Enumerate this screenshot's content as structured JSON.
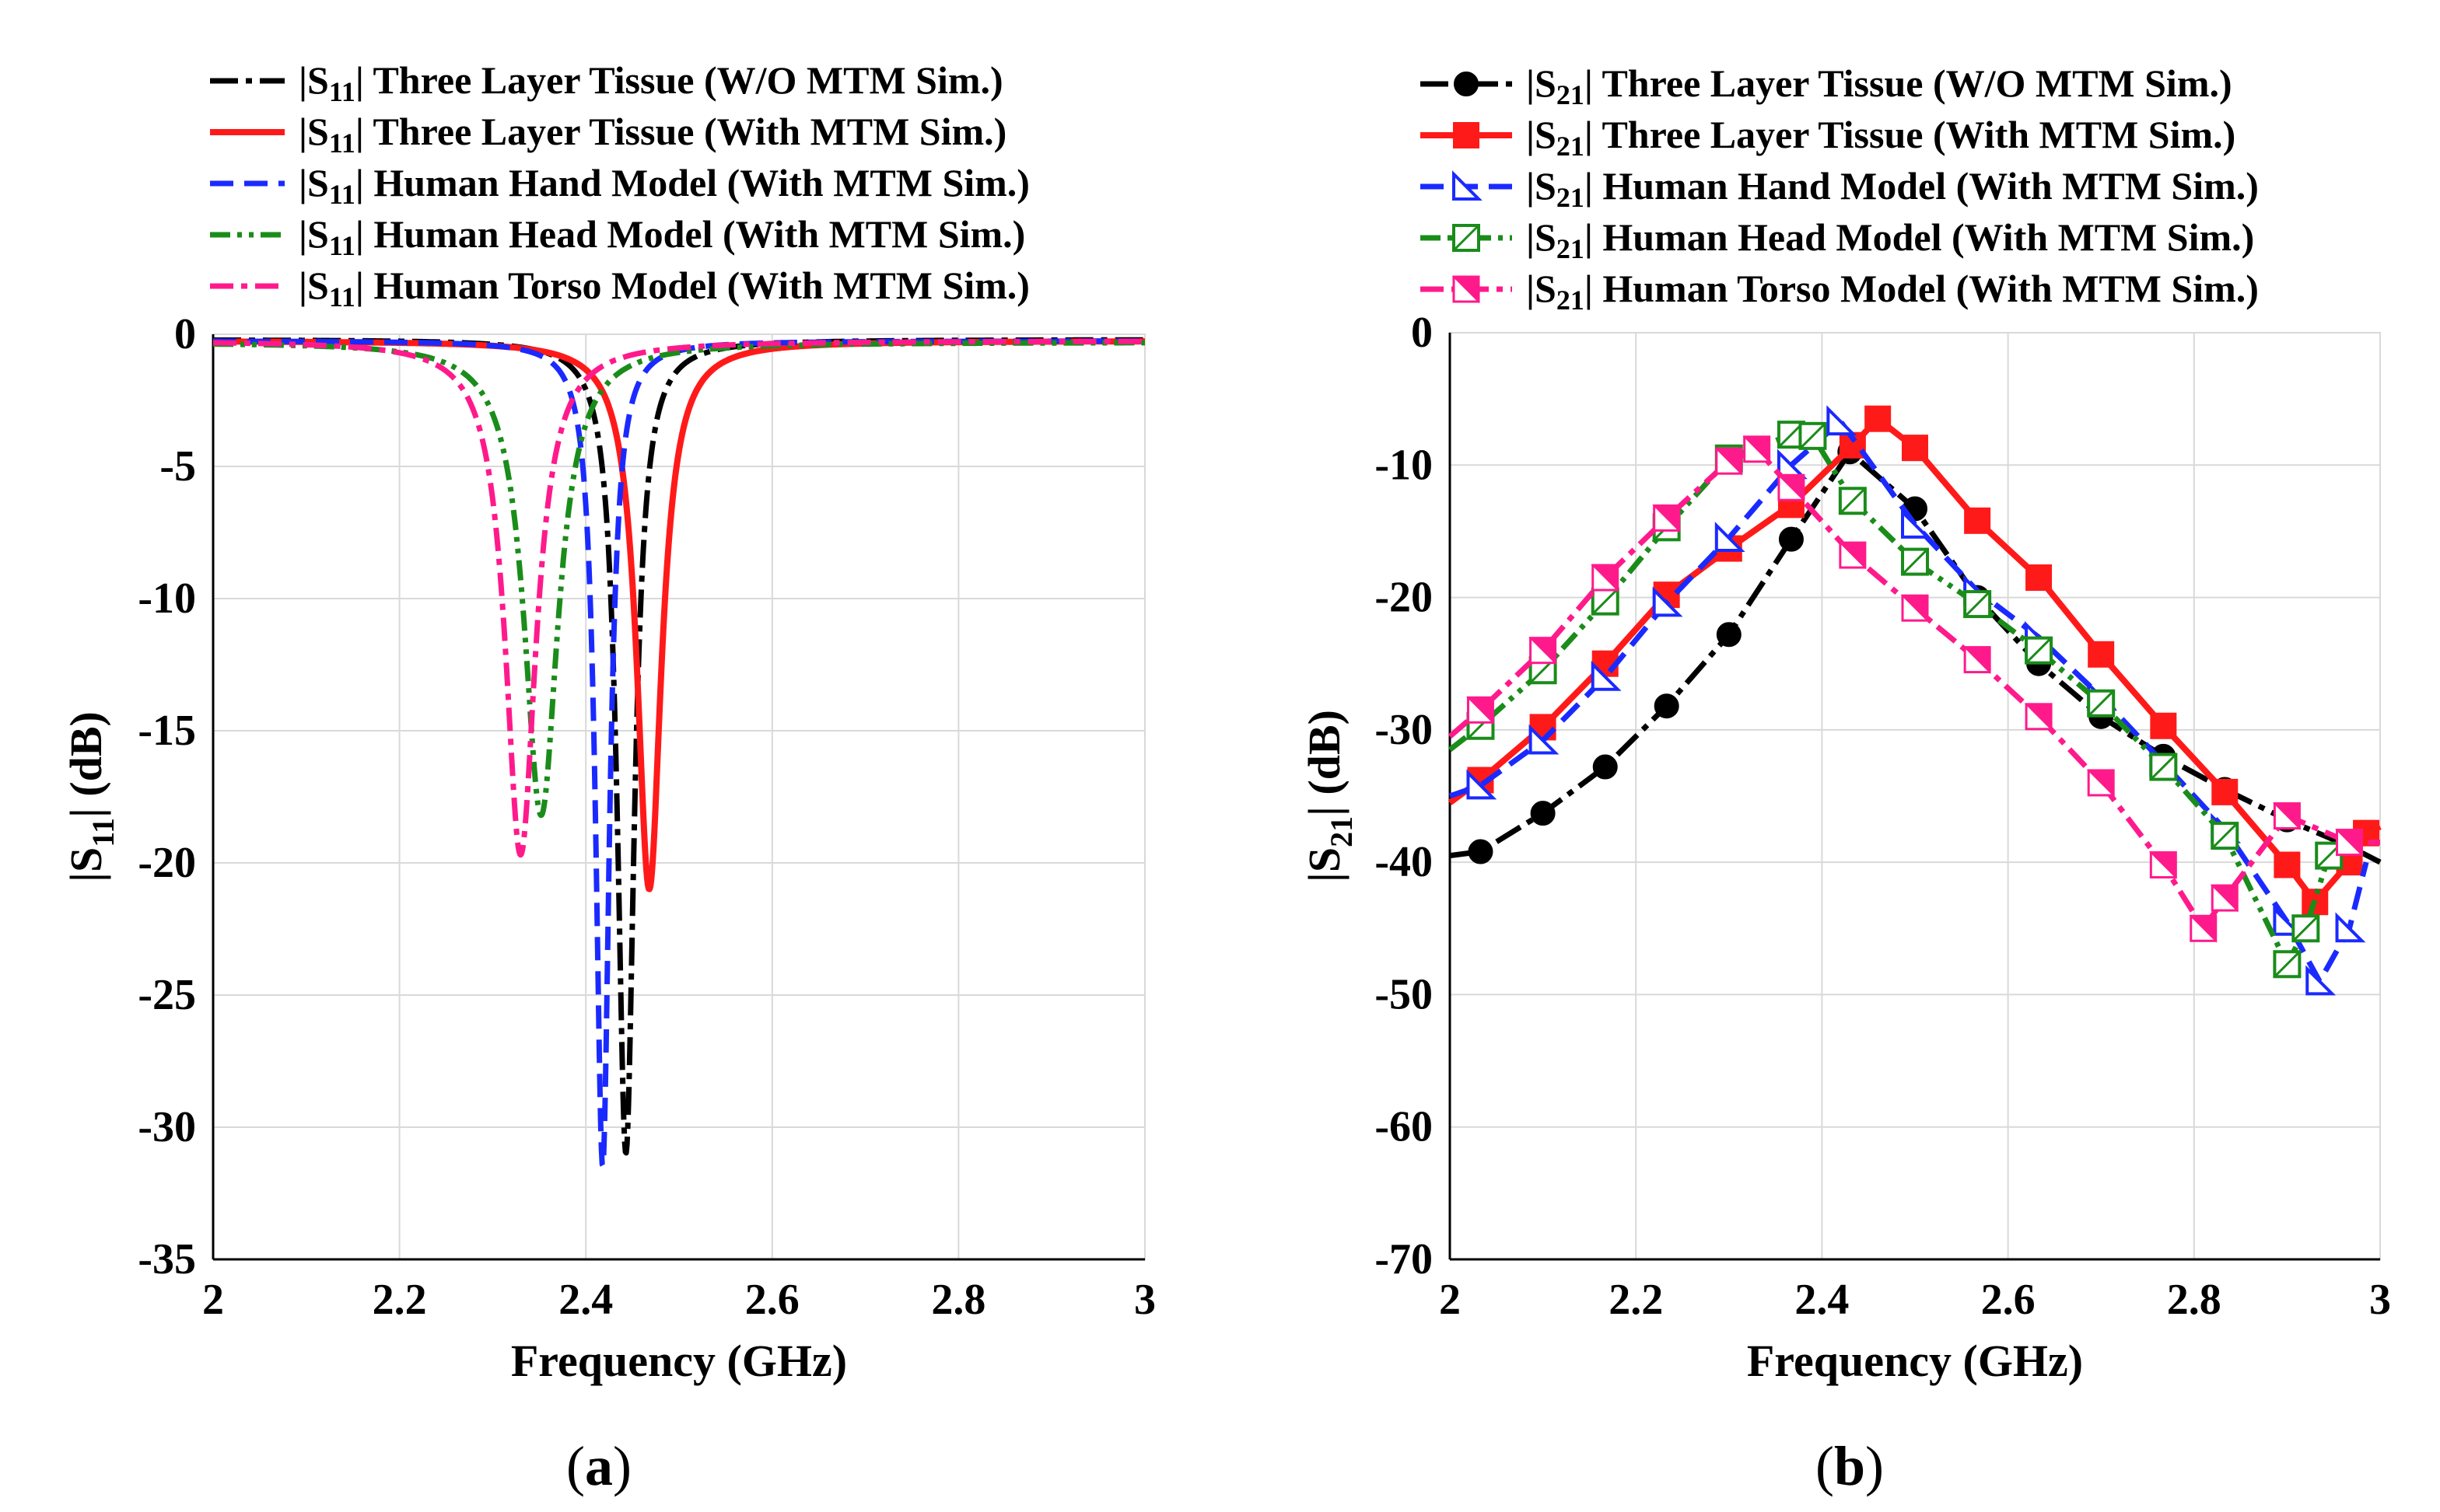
{
  "figure_labels": {
    "a": "(a)",
    "b": "(b)"
  },
  "chart_data": [
    {
      "type": "line",
      "panel": "(a)",
      "title": "",
      "xlabel": "Frequency (GHz)",
      "ylabel": "|S11| (dB)",
      "ylabel_main": "|S",
      "ylabel_sub": "11",
      "ylabel_rest": "| (dB)",
      "xlim": [
        2,
        3
      ],
      "ylim": [
        -35,
        0
      ],
      "xticks": [
        2,
        2.2,
        2.4,
        2.6,
        2.8,
        3
      ],
      "xtick_labels": [
        "2",
        "2.2",
        "2.4",
        "2.6",
        "2.8",
        "3"
      ],
      "yticks": [
        0,
        -5,
        -10,
        -15,
        -20,
        -25,
        -30,
        -35
      ],
      "ytick_labels": [
        "0",
        "-5",
        "-10",
        "-15",
        "-20",
        "-25",
        "-30",
        "-35"
      ],
      "grid": true,
      "legend_position": "top",
      "series": [
        {
          "name": "|S11| Three Layer Tissue (W/O MTM Sim.)",
          "param_main": "|S",
          "param_sub": "11",
          "param_rest": "|",
          "label": "Three Layer Tissue (W/O MTM Sim.)",
          "color": "#000000",
          "dash": "36 10 8 10",
          "width": 7,
          "marker": "none",
          "f0": 2.443,
          "depth": -31,
          "bw": 0.011,
          "base": -0.2
        },
        {
          "name": "|S11| Three Layer Tissue (With MTM Sim.)",
          "param_main": "|S",
          "param_sub": "11",
          "param_rest": "|",
          "label": "Three Layer Tissue (With MTM Sim.)",
          "color": "#ff1a1a",
          "dash": "",
          "width": 8,
          "marker": "none",
          "f0": 2.468,
          "depth": -21,
          "bw": 0.016,
          "base": -0.25
        },
        {
          "name": "|S11| Human Hand Model (With MTM Sim.)",
          "param_main": "|S",
          "param_sub": "11",
          "param_rest": "|",
          "label": "Human Hand Model (With MTM Sim.)",
          "color": "#1a2aff",
          "dash": "30 14",
          "width": 7,
          "marker": "none",
          "f0": 2.418,
          "depth": -31.5,
          "bw": 0.009,
          "base": -0.25
        },
        {
          "name": "|S11| Human Head Model (With MTM Sim.)",
          "param_main": "|S",
          "param_sub": "11",
          "param_rest": "|",
          "label": "Human Head Model (With MTM Sim.)",
          "color": "#1a8c1a",
          "dash": "26 9 6 9 6 9",
          "width": 7,
          "marker": "none",
          "f0": 2.352,
          "depth": -18.2,
          "bw": 0.022,
          "base": -0.3
        },
        {
          "name": "|S11| Human Torso Model (With MTM Sim.)",
          "param_main": "|S",
          "param_sub": "11",
          "param_rest": "|",
          "label": "Human Torso Model (With MTM Sim.)",
          "color": "#ff1a8c",
          "dash": "30 10 8 10",
          "width": 7,
          "marker": "none",
          "f0": 2.33,
          "depth": -19.7,
          "bw": 0.02,
          "base": -0.25
        }
      ]
    },
    {
      "type": "line",
      "panel": "(b)",
      "title": "",
      "xlabel": "Frequency (GHz)",
      "ylabel": "|S21| (dB)",
      "ylabel_main": "|S",
      "ylabel_sub": "21",
      "ylabel_rest": "| (dB)",
      "xlim": [
        2,
        3
      ],
      "ylim": [
        -70,
        0
      ],
      "xticks": [
        2,
        2.2,
        2.4,
        2.6,
        2.8,
        3
      ],
      "xtick_labels": [
        "2",
        "2.2",
        "2.4",
        "2.6",
        "2.8",
        "3"
      ],
      "yticks": [
        0,
        -10,
        -20,
        -30,
        -40,
        -50,
        -60,
        -70
      ],
      "ytick_labels": [
        "0",
        "-10",
        "-20",
        "-30",
        "-40",
        "-50",
        "-60",
        "-70"
      ],
      "grid": true,
      "legend_position": "top",
      "series": [
        {
          "name": "|S21| Three Layer Tissue (W/O MTM Sim.)",
          "param_main": "|S",
          "param_sub": "21",
          "param_rest": "|",
          "label": "Three Layer Tissue (W/O MTM Sim.)",
          "color": "#000000",
          "dash": "36 10 8 10",
          "width": 7,
          "marker": "circle",
          "x": [
            2.0,
            2.033,
            2.1,
            2.167,
            2.233,
            2.3,
            2.367,
            2.43,
            2.5,
            2.567,
            2.633,
            2.7,
            2.767,
            2.833,
            2.9,
            2.967,
            3.0
          ],
          "y": [
            -39.5,
            -39.2,
            -36.3,
            -32.8,
            -28.2,
            -22.8,
            -15.6,
            -9,
            -13.3,
            -20,
            -25,
            -29,
            -32,
            -34.5,
            -36.8,
            -38.8,
            -40
          ]
        },
        {
          "name": "|S21| Three Layer Tissue (With MTM Sim.)",
          "param_main": "|S",
          "param_sub": "21",
          "param_rest": "|",
          "label": "Three Layer Tissue (With MTM Sim.)",
          "color": "#ff1a1a",
          "dash": "",
          "width": 8,
          "marker": "square",
          "x": [
            2.0,
            2.033,
            2.1,
            2.167,
            2.233,
            2.3,
            2.367,
            2.433,
            2.46,
            2.5,
            2.567,
            2.633,
            2.7,
            2.767,
            2.833,
            2.9,
            2.93,
            2.967,
            2.985,
            3.0
          ],
          "y": [
            -35.5,
            -33.8,
            -29.8,
            -25,
            -19.8,
            -16.3,
            -13,
            -8.5,
            -6.5,
            -8.7,
            -14.2,
            -18.5,
            -24.3,
            -29.7,
            -34.7,
            -40.2,
            -43,
            -40,
            -37.8,
            -37.3
          ]
        },
        {
          "name": "|S21| Human Hand Model (With MTM Sim.)",
          "param_main": "|S",
          "param_sub": "21",
          "param_rest": "|",
          "label": "Human Hand Model (With MTM Sim.)",
          "color": "#1a2aff",
          "dash": "30 14",
          "width": 7,
          "marker": "tri",
          "x": [
            2.0,
            2.033,
            2.1,
            2.167,
            2.233,
            2.3,
            2.367,
            2.42,
            2.5,
            2.567,
            2.633,
            2.7,
            2.767,
            2.833,
            2.9,
            2.935,
            2.967,
            2.985
          ],
          "y": [
            -35,
            -34.2,
            -30.8,
            -26,
            -20.4,
            -15.5,
            -10,
            -6.7,
            -14.5,
            -19.5,
            -23,
            -27.5,
            -32.5,
            -37.5,
            -44.5,
            -49,
            -45,
            -40
          ]
        },
        {
          "name": "|S21| Human Head Model (With MTM Sim.)",
          "param_main": "|S",
          "param_sub": "21",
          "param_rest": "|",
          "label": "Human Head Model (With MTM Sim.)",
          "color": "#1a8c1a",
          "dash": "26 9 6 9 6 9",
          "width": 7,
          "marker": "sqbox",
          "x": [
            2.0,
            2.033,
            2.1,
            2.167,
            2.233,
            2.3,
            2.367,
            2.39,
            2.433,
            2.5,
            2.567,
            2.633,
            2.7,
            2.767,
            2.833,
            2.9,
            2.92,
            2.945,
            2.967
          ],
          "y": [
            -31.5,
            -29.7,
            -25.5,
            -20.3,
            -14.7,
            -9.5,
            -7.7,
            -7.8,
            -12.7,
            -17.3,
            -20.5,
            -24,
            -28,
            -32.8,
            -38,
            -47.7,
            -45,
            -39.5,
            -38
          ]
        },
        {
          "name": "|S21| Human Torso Model (With MTM Sim.)",
          "param_main": "|S",
          "param_sub": "21",
          "param_rest": "|",
          "label": "Human Torso Model (With MTM Sim.)",
          "color": "#ff1a8c",
          "dash": "30 10 8 10",
          "width": 7,
          "marker": "bowtie",
          "x": [
            2.0,
            2.033,
            2.1,
            2.167,
            2.233,
            2.3,
            2.33,
            2.367,
            2.433,
            2.5,
            2.567,
            2.633,
            2.7,
            2.767,
            2.81,
            2.833,
            2.9,
            2.967,
            3.0
          ],
          "y": [
            -30.5,
            -28.5,
            -24,
            -18.5,
            -14,
            -9.7,
            -8.8,
            -11.7,
            -16.8,
            -20.8,
            -24.7,
            -29,
            -34,
            -40.2,
            -45,
            -42.7,
            -36.5,
            -38.5,
            -38.5
          ]
        }
      ]
    }
  ]
}
